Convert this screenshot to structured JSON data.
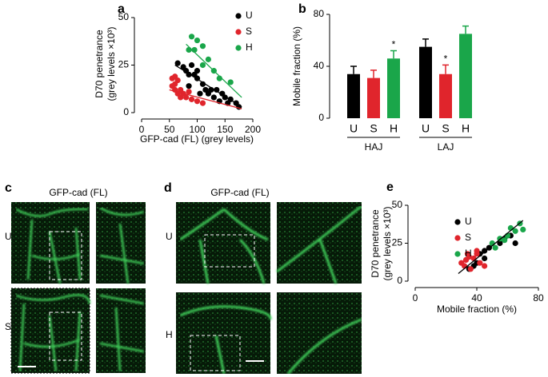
{
  "chart_data": [
    {
      "type": "scatter",
      "label": "a",
      "xlabel": "GFP-cad (FL) (grey levels)",
      "ylabel": [
        "D70 penetrance",
        "(grey levels ×10³)"
      ],
      "xlim": [
        0,
        200
      ],
      "xticks": [
        0,
        50,
        100,
        150,
        200
      ],
      "ylim": [
        0,
        50
      ],
      "yticks": [
        0,
        25,
        50
      ],
      "series": [
        {
          "name": "U",
          "color": "#000000",
          "x": [
            65,
            75,
            80,
            85,
            90,
            95,
            100,
            100,
            110,
            115,
            120,
            125,
            130,
            140,
            145,
            150,
            155,
            160,
            170,
            175,
            85,
            105,
            135
          ],
          "values": [
            26,
            24,
            22,
            20,
            25,
            20,
            18,
            22,
            15,
            12,
            10,
            12,
            8,
            6,
            10,
            8,
            5,
            7,
            5,
            3,
            14,
            10,
            12
          ],
          "trend_x": [
            60,
            180
          ],
          "trend_y": [
            25,
            3
          ]
        },
        {
          "name": "S",
          "color": "#e0252c",
          "x": [
            55,
            60,
            65,
            55,
            60,
            65,
            70,
            75,
            80,
            90,
            100,
            110,
            60,
            70,
            85
          ],
          "values": [
            18,
            19,
            17,
            14,
            12,
            10,
            8,
            10,
            8,
            7,
            6,
            5,
            15,
            12,
            11
          ],
          "trend_x": [
            50,
            180
          ],
          "trend_y": [
            12,
            2
          ]
        },
        {
          "name": "H",
          "color": "#1aa64a",
          "x": [
            90,
            100,
            85,
            95,
            110,
            120,
            130,
            140,
            160,
            110
          ],
          "values": [
            40,
            38,
            33,
            33,
            35,
            28,
            22,
            18,
            16,
            25
          ],
          "trend_x": [
            80,
            180
          ],
          "trend_y": [
            36,
            8
          ]
        }
      ]
    },
    {
      "type": "bar",
      "label": "b",
      "ylabel": "Mobile fraction (%)",
      "ylim": [
        0,
        80
      ],
      "yticks": [
        0,
        40,
        80
      ],
      "categories": [
        "U",
        "S",
        "H",
        "U",
        "S",
        "H"
      ],
      "colors": [
        "#000000",
        "#e0252c",
        "#1aa64a",
        "#000000",
        "#e0252c",
        "#1aa64a"
      ],
      "values": [
        34,
        31,
        46,
        55,
        34,
        65
      ],
      "errors": [
        6,
        6,
        6,
        6,
        7,
        6
      ],
      "significance": [
        null,
        null,
        "*",
        null,
        "*",
        null
      ],
      "groups": [
        "HAJ",
        "LAJ"
      ]
    },
    {
      "type": "scatter",
      "label": "e",
      "xlabel": "Mobile fraction (%)",
      "ylabel": [
        "D70 penetrance",
        "(grey levels ×10³)"
      ],
      "xlim": [
        0,
        80
      ],
      "xticks": [
        0,
        40,
        80
      ],
      "ylim": [
        0,
        50
      ],
      "yticks": [
        0,
        25,
        50
      ],
      "fit_x": [
        28,
        70
      ],
      "fit_y": [
        5,
        40
      ],
      "series": [
        {
          "name": "U",
          "color": "#000000",
          "x": [
            35,
            40,
            42,
            45,
            48,
            55,
            58,
            62,
            65,
            45,
            38
          ],
          "values": [
            8,
            12,
            18,
            20,
            22,
            25,
            28,
            30,
            25,
            15,
            10
          ]
        },
        {
          "name": "S",
          "color": "#e0252c",
          "x": [
            30,
            33,
            35,
            38,
            40,
            42,
            45,
            36,
            32,
            40,
            34
          ],
          "values": [
            12,
            14,
            16,
            15,
            18,
            12,
            10,
            8,
            10,
            20,
            18
          ]
        },
        {
          "name": "H",
          "color": "#1aa64a",
          "x": [
            50,
            55,
            60,
            62,
            65,
            68,
            58,
            70,
            52
          ],
          "values": [
            25,
            28,
            30,
            35,
            33,
            38,
            27,
            34,
            22
          ]
        }
      ]
    }
  ],
  "panels": {
    "c": {
      "label": "c",
      "title": "GFP-cad (FL)",
      "rows": [
        "U",
        "S"
      ]
    },
    "d": {
      "label": "d",
      "title": "GFP-cad (FL)",
      "rows": [
        "U",
        "H"
      ]
    }
  }
}
